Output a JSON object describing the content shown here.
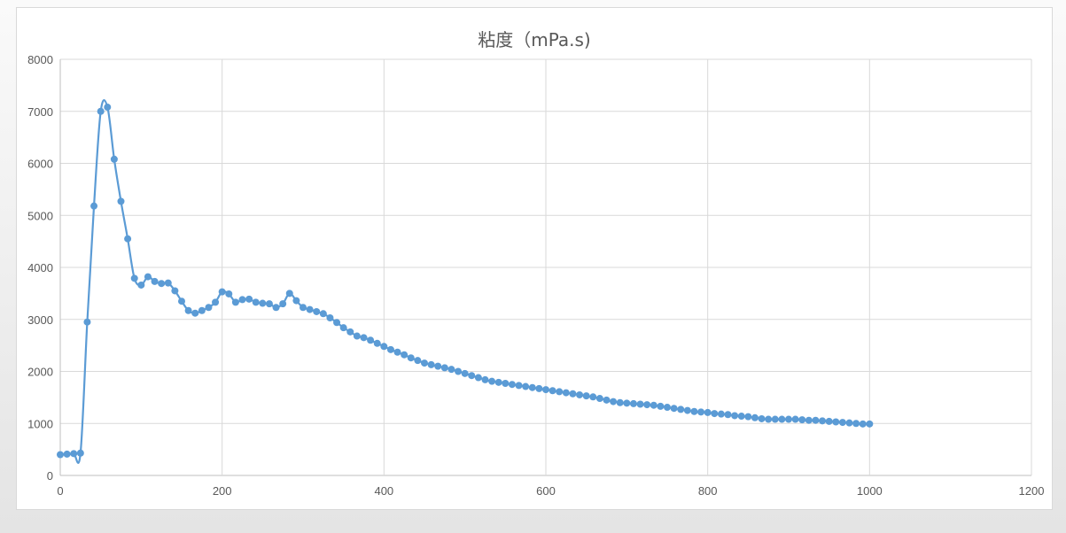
{
  "chart_data": {
    "type": "line",
    "title": "粘度（mPa.s)",
    "xlabel": "",
    "ylabel": "",
    "xlim": [
      0,
      1200
    ],
    "ylim": [
      0,
      8000
    ],
    "x_ticks": [
      "0",
      "200",
      "400",
      "600",
      "800",
      "1000",
      "1200"
    ],
    "y_ticks": [
      "0",
      "1000",
      "2000",
      "3000",
      "4000",
      "5000",
      "6000",
      "7000",
      "8000"
    ],
    "grid": true,
    "legend": "none",
    "series_color": "#5b9bd5",
    "x_step": 8.3333,
    "series": [
      {
        "name": "粘度",
        "values": [
          400,
          410,
          420,
          430,
          2950,
          5180,
          7000,
          7080,
          6080,
          5270,
          4550,
          3790,
          3660,
          3820,
          3730,
          3690,
          3700,
          3550,
          3350,
          3170,
          3120,
          3170,
          3230,
          3330,
          3530,
          3490,
          3330,
          3380,
          3390,
          3330,
          3310,
          3300,
          3230,
          3300,
          3500,
          3360,
          3230,
          3190,
          3150,
          3110,
          3030,
          2940,
          2840,
          2760,
          2680,
          2650,
          2600,
          2540,
          2480,
          2420,
          2370,
          2320,
          2260,
          2210,
          2160,
          2130,
          2100,
          2070,
          2040,
          2000,
          1960,
          1920,
          1880,
          1840,
          1810,
          1790,
          1770,
          1750,
          1730,
          1710,
          1690,
          1670,
          1650,
          1630,
          1610,
          1590,
          1570,
          1550,
          1530,
          1510,
          1480,
          1450,
          1420,
          1400,
          1390,
          1380,
          1370,
          1360,
          1350,
          1330,
          1310,
          1290,
          1270,
          1250,
          1230,
          1220,
          1210,
          1190,
          1180,
          1170,
          1150,
          1140,
          1130,
          1110,
          1090,
          1080,
          1080,
          1080,
          1080,
          1080,
          1070,
          1060,
          1060,
          1050,
          1040,
          1030,
          1020,
          1010,
          1000,
          990,
          990
        ]
      }
    ]
  }
}
